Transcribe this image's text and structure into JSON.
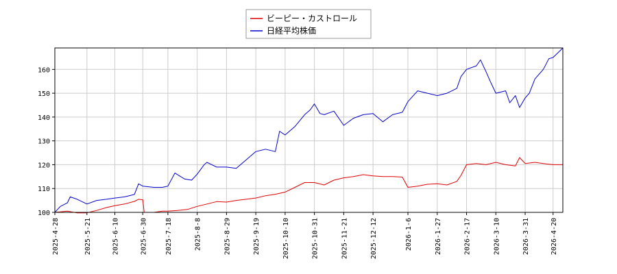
{
  "chart_data": {
    "type": "line",
    "xlabel": "",
    "ylabel": "",
    "ylim": [
      100,
      169
    ],
    "xlim": [
      "2025-04-28",
      "2026-04-27"
    ],
    "grid": true,
    "legend_position": "top-center",
    "y_ticks": [
      "100",
      "110",
      "120",
      "130",
      "140",
      "150",
      "160"
    ],
    "x_ticks": [
      "2025-4-28",
      "2025-5-21",
      "2025-6-10",
      "2025-6-30",
      "2025-7-18",
      "2025-8-8",
      "2025-8-29",
      "2025-9-19",
      "2025-10-10",
      "2025-10-31",
      "2025-11-21",
      "2025-12-12",
      "2026-1-6",
      "2026-1-27",
      "2026-2-17",
      "2026-3-10",
      "2026-3-31",
      "2026-4-20"
    ],
    "series": [
      {
        "name": "ビーピー・カストロール",
        "color": "#dd0000",
        "points": [
          [
            "2025-04-28",
            100.0
          ],
          [
            "2025-05-07",
            100.5
          ],
          [
            "2025-05-14",
            99.8
          ],
          [
            "2025-05-21",
            99.8
          ],
          [
            "2025-05-28",
            100.8
          ],
          [
            "2025-06-04",
            102.0
          ],
          [
            "2025-06-10",
            102.8
          ],
          [
            "2025-06-17",
            103.5
          ],
          [
            "2025-06-24",
            104.6
          ],
          [
            "2025-06-27",
            105.5
          ],
          [
            "2025-06-30",
            105.3
          ],
          [
            "2025-07-01",
            100.0
          ],
          [
            "2025-07-08",
            100.0
          ],
          [
            "2025-07-14",
            100.5
          ],
          [
            "2025-07-18",
            100.5
          ],
          [
            "2025-07-25",
            100.8
          ],
          [
            "2025-08-01",
            101.2
          ],
          [
            "2025-08-08",
            102.5
          ],
          [
            "2025-08-15",
            103.5
          ],
          [
            "2025-08-22",
            104.5
          ],
          [
            "2025-08-29",
            104.3
          ],
          [
            "2025-09-05",
            105.0
          ],
          [
            "2025-09-12",
            105.5
          ],
          [
            "2025-09-19",
            106.0
          ],
          [
            "2025-09-26",
            107.0
          ],
          [
            "2025-10-03",
            107.6
          ],
          [
            "2025-10-10",
            108.5
          ],
          [
            "2025-10-17",
            110.5
          ],
          [
            "2025-10-24",
            112.5
          ],
          [
            "2025-10-31",
            112.5
          ],
          [
            "2025-11-07",
            111.5
          ],
          [
            "2025-11-14",
            113.5
          ],
          [
            "2025-11-21",
            114.5
          ],
          [
            "2025-11-28",
            115.0
          ],
          [
            "2025-12-05",
            115.8
          ],
          [
            "2025-12-12",
            115.3
          ],
          [
            "2025-12-19",
            115.0
          ],
          [
            "2025-12-26",
            115.0
          ],
          [
            "2026-01-02",
            114.8
          ],
          [
            "2026-01-06",
            110.5
          ],
          [
            "2026-01-13",
            111.0
          ],
          [
            "2026-01-20",
            111.8
          ],
          [
            "2026-01-27",
            112.0
          ],
          [
            "2026-02-03",
            111.5
          ],
          [
            "2026-02-10",
            113.0
          ],
          [
            "2026-02-13",
            115.5
          ],
          [
            "2026-02-17",
            120.0
          ],
          [
            "2026-02-24",
            120.5
          ],
          [
            "2026-03-03",
            120.0
          ],
          [
            "2026-03-10",
            121.0
          ],
          [
            "2026-03-17",
            120.0
          ],
          [
            "2026-03-24",
            119.5
          ],
          [
            "2026-03-27",
            123.0
          ],
          [
            "2026-03-31",
            120.5
          ],
          [
            "2026-04-07",
            121.0
          ],
          [
            "2026-04-13",
            120.5
          ],
          [
            "2026-04-20",
            120.0
          ],
          [
            "2026-04-27",
            120.0
          ]
        ]
      },
      {
        "name": "日経平均株価",
        "color": "#0000cc",
        "points": [
          [
            "2025-04-28",
            100.0
          ],
          [
            "2025-05-02",
            102.5
          ],
          [
            "2025-05-07",
            104.0
          ],
          [
            "2025-05-09",
            106.5
          ],
          [
            "2025-05-14",
            105.5
          ],
          [
            "2025-05-21",
            103.5
          ],
          [
            "2025-05-28",
            105.0
          ],
          [
            "2025-06-04",
            105.5
          ],
          [
            "2025-06-10",
            106.0
          ],
          [
            "2025-06-17",
            106.5
          ],
          [
            "2025-06-24",
            107.5
          ],
          [
            "2025-06-27",
            112.0
          ],
          [
            "2025-06-30",
            111.0
          ],
          [
            "2025-07-08",
            110.5
          ],
          [
            "2025-07-14",
            110.5
          ],
          [
            "2025-07-18",
            111.0
          ],
          [
            "2025-07-23",
            116.5
          ],
          [
            "2025-07-30",
            114.0
          ],
          [
            "2025-08-04",
            113.5
          ],
          [
            "2025-08-08",
            116.0
          ],
          [
            "2025-08-13",
            120.0
          ],
          [
            "2025-08-15",
            121.0
          ],
          [
            "2025-08-22",
            119.0
          ],
          [
            "2025-08-29",
            119.0
          ],
          [
            "2025-09-05",
            118.5
          ],
          [
            "2025-09-12",
            122.0
          ],
          [
            "2025-09-19",
            125.5
          ],
          [
            "2025-09-26",
            126.5
          ],
          [
            "2025-10-03",
            125.5
          ],
          [
            "2025-10-06",
            134.0
          ],
          [
            "2025-10-10",
            132.5
          ],
          [
            "2025-10-17",
            136.0
          ],
          [
            "2025-10-24",
            141.0
          ],
          [
            "2025-10-28",
            143.0
          ],
          [
            "2025-10-31",
            145.5
          ],
          [
            "2025-11-04",
            141.5
          ],
          [
            "2025-11-07",
            141.0
          ],
          [
            "2025-11-14",
            142.5
          ],
          [
            "2025-11-21",
            136.5
          ],
          [
            "2025-11-28",
            139.5
          ],
          [
            "2025-12-05",
            141.0
          ],
          [
            "2025-12-12",
            141.5
          ],
          [
            "2025-12-19",
            138.0
          ],
          [
            "2025-12-26",
            141.0
          ],
          [
            "2026-01-02",
            142.0
          ],
          [
            "2026-01-06",
            146.5
          ],
          [
            "2026-01-13",
            151.0
          ],
          [
            "2026-01-20",
            150.0
          ],
          [
            "2026-01-27",
            149.0
          ],
          [
            "2026-02-03",
            150.0
          ],
          [
            "2026-02-10",
            152.0
          ],
          [
            "2026-02-13",
            157.0
          ],
          [
            "2026-02-17",
            160.0
          ],
          [
            "2026-02-24",
            161.5
          ],
          [
            "2026-02-27",
            164.0
          ],
          [
            "2026-03-03",
            159.0
          ],
          [
            "2026-03-06",
            155.0
          ],
          [
            "2026-03-10",
            150.0
          ],
          [
            "2026-03-17",
            151.0
          ],
          [
            "2026-03-20",
            146.0
          ],
          [
            "2026-03-24",
            149.0
          ],
          [
            "2026-03-27",
            144.0
          ],
          [
            "2026-03-31",
            148.0
          ],
          [
            "2026-04-03",
            150.0
          ],
          [
            "2026-04-07",
            156.0
          ],
          [
            "2026-04-13",
            160.0
          ],
          [
            "2026-04-17",
            164.5
          ],
          [
            "2026-04-20",
            165.0
          ],
          [
            "2026-04-27",
            169.0
          ]
        ]
      }
    ]
  }
}
